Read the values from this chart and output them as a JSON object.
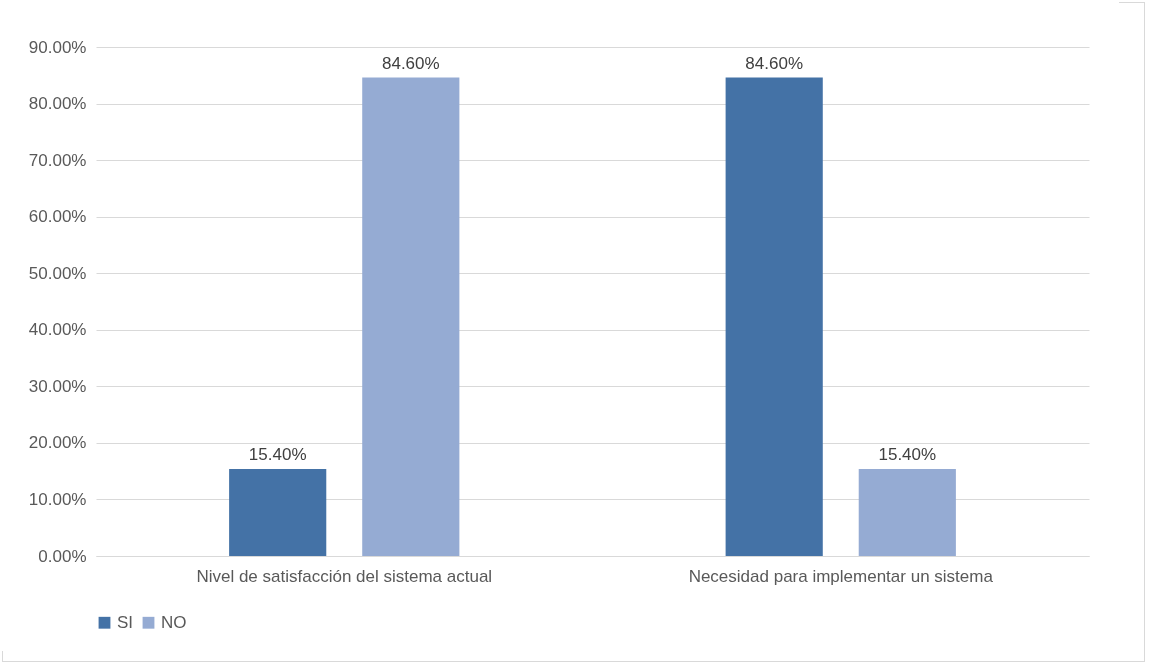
{
  "chart_data": {
    "type": "bar",
    "categories": [
      "Nivel de satisfacción del sistema actual",
      "Necesidad para implementar un sistema"
    ],
    "series": [
      {
        "name": "SI",
        "color": "#4472a6",
        "values": [
          15.4,
          84.6
        ],
        "value_labels": [
          "15.40%",
          "84.60%"
        ]
      },
      {
        "name": "NO",
        "color": "#95abd3",
        "values": [
          84.6,
          15.4
        ],
        "value_labels": [
          "84.60%",
          "15.40%"
        ]
      }
    ],
    "ylim": [
      0,
      90
    ],
    "yticks": [
      {
        "value": 0,
        "label": "0.00%"
      },
      {
        "value": 10,
        "label": "10.00%"
      },
      {
        "value": 20,
        "label": "20.00%"
      },
      {
        "value": 30,
        "label": "30.00%"
      },
      {
        "value": 40,
        "label": "40.00%"
      },
      {
        "value": 50,
        "label": "50.00%"
      },
      {
        "value": 60,
        "label": "60.00%"
      },
      {
        "value": 70,
        "label": "70.00%"
      },
      {
        "value": 80,
        "label": "80.00%"
      },
      {
        "value": 90,
        "label": "90.00%"
      }
    ],
    "grid": "y",
    "legend": "bottom"
  }
}
